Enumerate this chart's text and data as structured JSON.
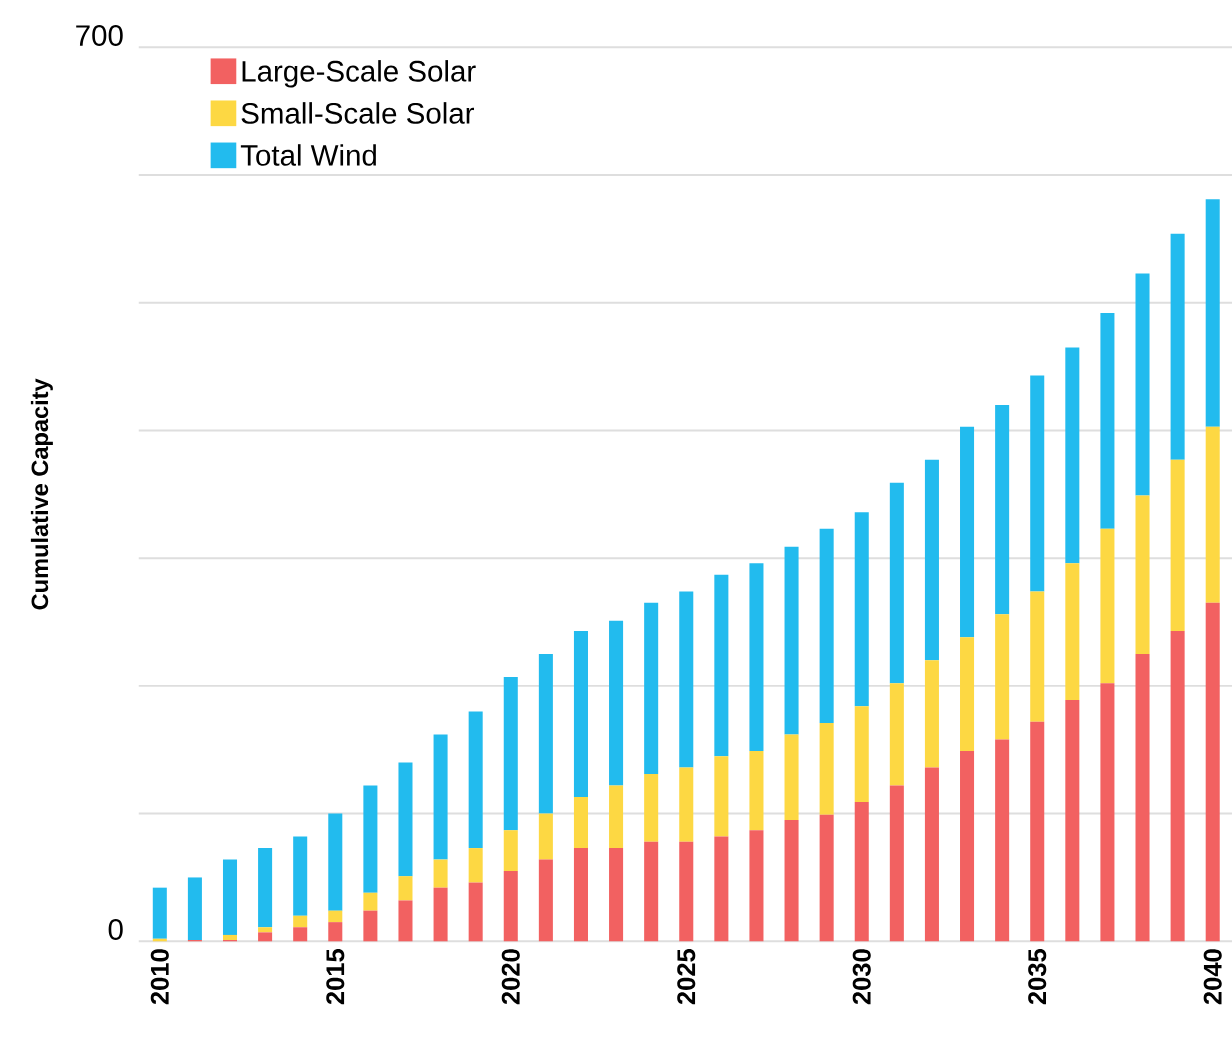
{
  "chart_data": {
    "type": "bar",
    "stacked": true,
    "ylabel": "Cumulative Capacity",
    "categories": [
      "2010",
      null,
      null,
      null,
      null,
      "2015",
      null,
      null,
      null,
      null,
      "2020",
      null,
      null,
      null,
      null,
      "2025",
      null,
      null,
      null,
      null,
      "2030",
      null,
      null,
      null,
      null,
      "2035",
      null,
      null,
      null,
      null,
      "2040"
    ],
    "series": [
      {
        "name": "Large-Scale Solar",
        "color": "#f26161",
        "values": [
          0,
          1,
          1,
          7,
          11,
          15,
          24,
          32,
          42,
          46,
          55,
          64,
          73,
          73,
          78,
          78,
          82,
          87,
          95,
          99,
          109,
          122,
          136,
          149,
          158,
          172,
          189,
          202,
          225,
          243,
          265
        ]
      },
      {
        "name": "Small-Scale Solar",
        "color": "#fdd843",
        "values": [
          2,
          0,
          4,
          4,
          9,
          9,
          14,
          19,
          22,
          27,
          32,
          36,
          40,
          49,
          53,
          58,
          63,
          62,
          67,
          72,
          75,
          80,
          84,
          89,
          98,
          102,
          107,
          121,
          124,
          134,
          138
        ]
      },
      {
        "name": "Total Wind",
        "color": "#22bbee",
        "values": [
          40,
          49,
          59,
          62,
          62,
          76,
          84,
          89,
          98,
          107,
          120,
          125,
          130,
          129,
          134,
          138,
          142,
          147,
          147,
          152,
          152,
          157,
          157,
          165,
          164,
          169,
          169,
          169,
          174,
          177,
          178
        ]
      }
    ],
    "ylim": [
      0,
      700
    ],
    "yticks": [
      0,
      {
        "value": 100,
        "label": null
      },
      {
        "value": 200,
        "label": null
      },
      {
        "value": 300,
        "label": null
      },
      {
        "value": 400,
        "label": null
      },
      {
        "value": 500,
        "label": null
      },
      {
        "value": 600,
        "label": null
      },
      700
    ],
    "grid": "y",
    "legend": "top left"
  }
}
